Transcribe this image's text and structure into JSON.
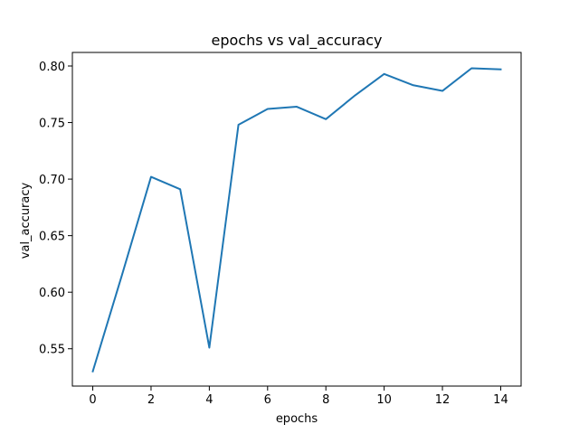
{
  "chart_data": {
    "type": "line",
    "title": "epochs vs val_accuracy",
    "xlabel": "epochs",
    "ylabel": "val_accuracy",
    "xlim": [
      -0.7,
      14.7
    ],
    "ylim": [
      0.517,
      0.812
    ],
    "xticks": [
      0,
      2,
      4,
      6,
      8,
      10,
      12,
      14
    ],
    "xtick_labels": [
      "0",
      "2",
      "4",
      "6",
      "8",
      "10",
      "12",
      "14"
    ],
    "yticks": [
      0.55,
      0.6,
      0.65,
      0.7,
      0.75,
      0.8
    ],
    "ytick_labels": [
      "0.55",
      "0.60",
      "0.65",
      "0.70",
      "0.75",
      "0.80"
    ],
    "grid": false,
    "series": [
      {
        "color": "#1f77b4",
        "x": [
          0,
          1,
          2,
          3,
          4,
          5,
          6,
          7,
          8,
          9,
          10,
          11,
          12,
          13,
          14
        ],
        "y": [
          0.53,
          0.615,
          0.702,
          0.691,
          0.551,
          0.748,
          0.762,
          0.764,
          0.753,
          0.774,
          0.793,
          0.783,
          0.778,
          0.798,
          0.797
        ]
      }
    ]
  }
}
